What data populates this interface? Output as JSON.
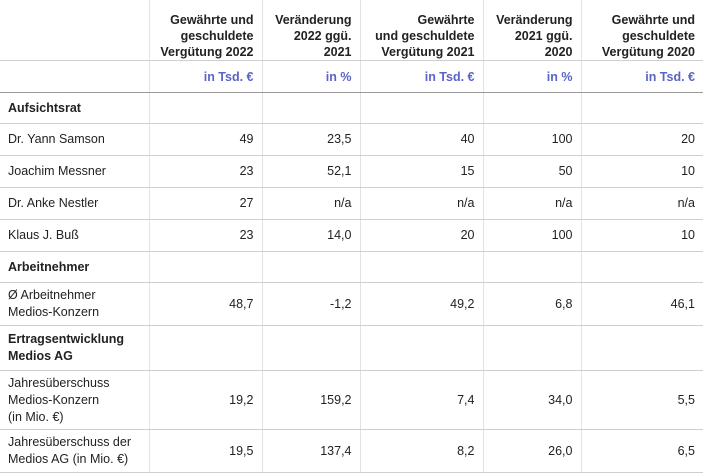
{
  "header": {
    "col1": "Gewährte und\ngeschuldete\nVergütung 2022",
    "col2": "Veränderung\n2022 ggü.\n2021",
    "col3": "Gewährte\nund geschuldete\nVergütung 2021",
    "col4": "Veränderung\n2021 ggü.\n2020",
    "col5": "Gewährte und\ngeschuldete\nVergütung 2020"
  },
  "units": {
    "col1": "in Tsd. €",
    "col2": "in %",
    "col3": "in Tsd. €",
    "col4": "in %",
    "col5": "in Tsd. €"
  },
  "sections": {
    "aufsichtsrat": "Aufsichtsrat",
    "arbeitnehmer": "Arbeitnehmer",
    "ertrag": "Ertragsentwicklung\nMedios AG"
  },
  "rows": [
    {
      "label": "Dr. Yann Samson",
      "v": [
        "49",
        "23,5",
        "40",
        "100",
        "20"
      ]
    },
    {
      "label": "Joachim Messner",
      "v": [
        "23",
        "52,1",
        "15",
        "50",
        "10"
      ]
    },
    {
      "label": "Dr. Anke Nestler",
      "v": [
        "27",
        "n/a",
        "n/a",
        "n/a",
        "n/a"
      ]
    },
    {
      "label": "Klaus J. Buß",
      "v": [
        "23",
        "14,0",
        "20",
        "100",
        "10"
      ]
    },
    {
      "label": "Ø Arbeitnehmer\nMedios-Konzern",
      "v": [
        "48,7",
        "-1,2",
        "49,2",
        "6,8",
        "46,1"
      ]
    },
    {
      "label": "Jahresüberschuss\nMedios-Konzern\n(in Mio. €)",
      "v": [
        "19,2",
        "159,2",
        "7,4",
        "34,0",
        "5,5"
      ]
    },
    {
      "label": "Jahresüberschuss der\nMedios AG (in Mio. €)",
      "v": [
        "19,5",
        "137,4",
        "8,2",
        "26,0",
        "6,5"
      ]
    }
  ]
}
